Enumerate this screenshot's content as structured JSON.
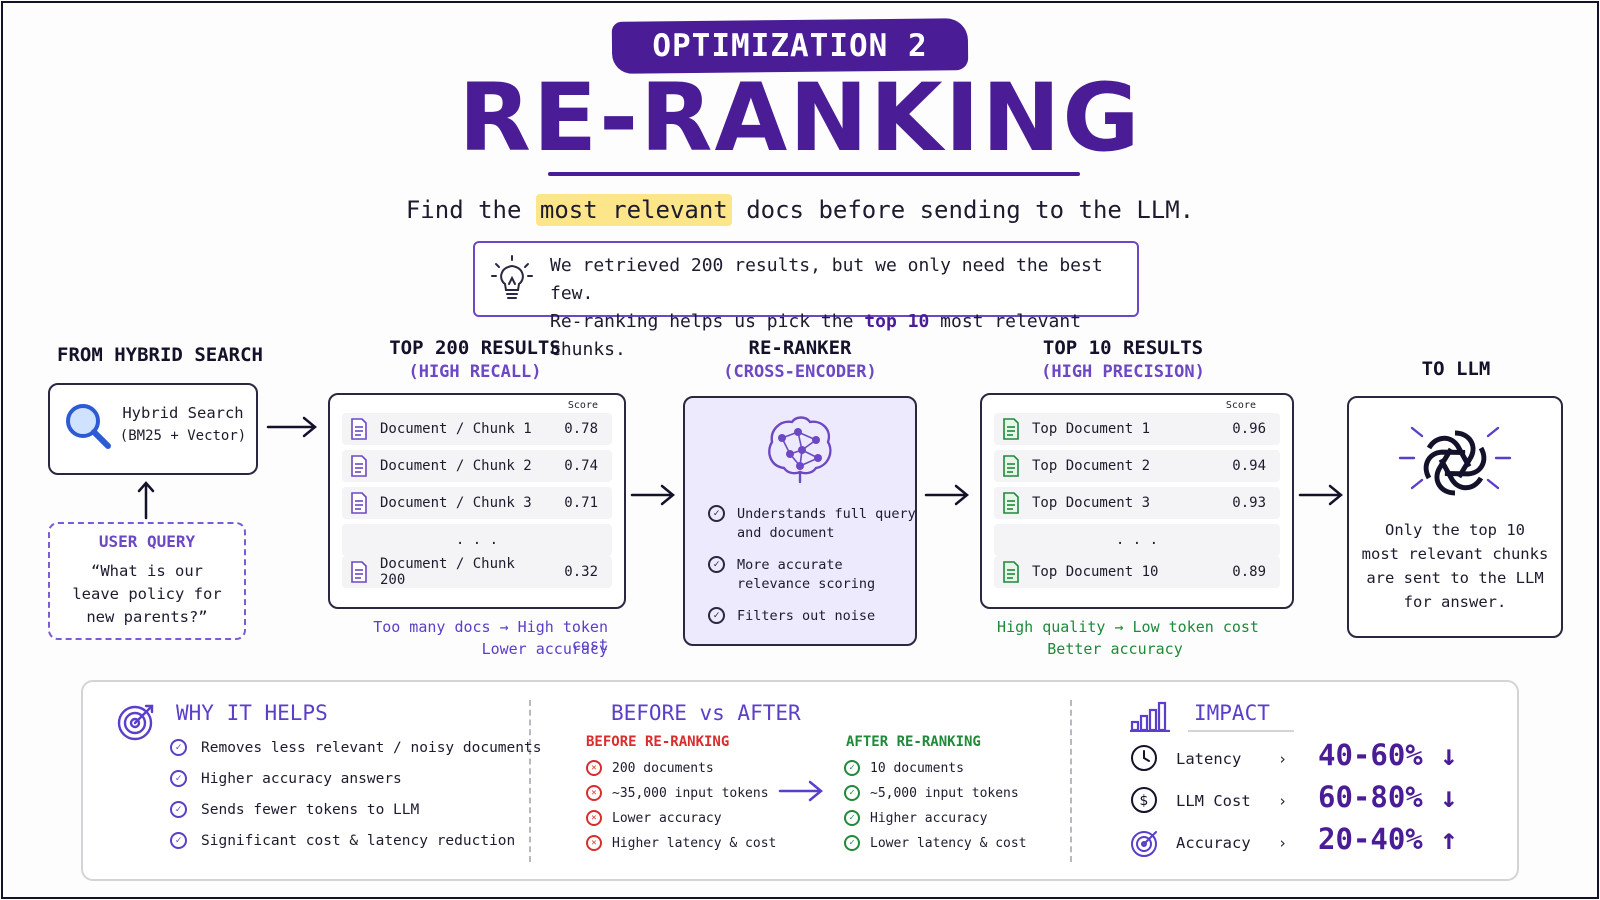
{
  "header": {
    "badge": "OPTIMIZATION 2",
    "title": "RE-RANKING",
    "subtitle_pre": "Find the ",
    "subtitle_highlight": "most relevant",
    "subtitle_post": " docs before sending to the LLM.",
    "tip_line1": "We retrieved 200 results, but we only need the best few.",
    "tip_line2_pre": "Re-ranking helps us pick the ",
    "tip_line2_bold": "top 10",
    "tip_line2_post": " most relevant chunks."
  },
  "hybrid": {
    "heading": "FROM HYBRID SEARCH",
    "label1": "Hybrid Search",
    "label2": "(BM25 + Vector)",
    "query_heading": "USER QUERY",
    "query_line1": "“What is our",
    "query_line2": "leave policy for",
    "query_line3": "new parents?”"
  },
  "top200": {
    "heading": "TOP 200 RESULTS",
    "subheading": "(HIGH RECALL)",
    "score_label": "Score",
    "rows": [
      {
        "label": "Document / Chunk 1",
        "score": "0.78"
      },
      {
        "label": "Document / Chunk 2",
        "score": "0.74"
      },
      {
        "label": "Document / Chunk 3",
        "score": "0.71"
      },
      {
        "label": "Document / Chunk 200",
        "score": "0.32"
      }
    ],
    "ellipsis": ". . .",
    "note1": "Too many docs → High token cost",
    "note2": "Lower accuracy"
  },
  "reranker": {
    "heading": "RE-RANKER",
    "subheading": "(CROSS-ENCODER)",
    "items": [
      {
        "line1": "Understands full query",
        "line2": "and document"
      },
      {
        "line1": "More accurate",
        "line2": "relevance scoring"
      },
      {
        "line1": "Filters out noise",
        "line2": ""
      }
    ]
  },
  "top10": {
    "heading": "TOP 10 RESULTS",
    "subheading": "(HIGH PRECISION)",
    "score_label": "Score",
    "rows": [
      {
        "label": "Top Document 1",
        "score": "0.96"
      },
      {
        "label": "Top Document 2",
        "score": "0.94"
      },
      {
        "label": "Top Document 3",
        "score": "0.93"
      },
      {
        "label": "Top Document 10",
        "score": "0.89"
      }
    ],
    "ellipsis": ". . .",
    "note1": "High quality → Low token cost",
    "note2": "Better accuracy"
  },
  "llm": {
    "heading": "TO LLM",
    "line1": "Only the top 10",
    "line2": "most relevant chunks",
    "line3": "are sent to the LLM",
    "line4": "for answer."
  },
  "why": {
    "title": "WHY IT HELPS",
    "items": [
      "Removes less relevant / noisy documents",
      "Higher accuracy answers",
      "Sends fewer tokens to LLM",
      "Significant cost & latency reduction"
    ]
  },
  "before_after": {
    "title": "BEFORE vs AFTER",
    "before_heading": "BEFORE RE-RANKING",
    "before_items": [
      "200 documents",
      "~35,000 input tokens",
      "Lower accuracy",
      "Higher latency & cost"
    ],
    "after_heading": "AFTER RE-RANKING",
    "after_items": [
      "10 documents",
      "~5,000 input tokens",
      "Higher accuracy",
      "Lower latency & cost"
    ]
  },
  "impact": {
    "title": "IMPACT",
    "rows": [
      {
        "label": "Latency",
        "chevron": "›",
        "value": "40-60%",
        "dir": "↓"
      },
      {
        "label": "LLM Cost",
        "chevron": "›",
        "value": "60-80%",
        "dir": "↓"
      },
      {
        "label": "Accuracy",
        "chevron": "›",
        "value": "20-40%",
        "dir": "↑"
      }
    ]
  },
  "colors": {
    "brand_purple": "#4a1d96",
    "accent_purple": "#5b3ec9",
    "positive_green": "#1e8a3a",
    "negative_red": "#d92d2d",
    "highlight_yellow": "#fde58a"
  }
}
